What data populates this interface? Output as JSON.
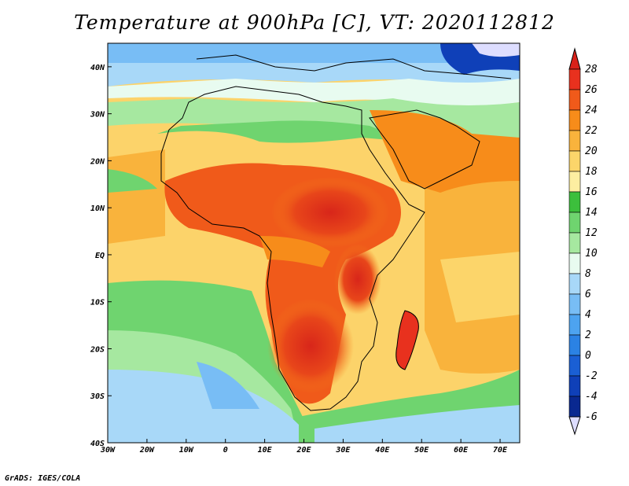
{
  "title": "Temperature at 900hPa [C], VT: 2020112812",
  "credit": "GrADS: IGES/COLA",
  "map": {
    "lon_range": [
      -30,
      75
    ],
    "lat_range": [
      -40,
      45
    ],
    "lon_ticks": [
      "30W",
      "20W",
      "10W",
      "0",
      "10E",
      "20E",
      "30E",
      "40E",
      "50E",
      "60E",
      "70E"
    ],
    "lat_ticks": [
      "40N",
      "30N",
      "20N",
      "10N",
      "EQ",
      "10S",
      "20S",
      "30S",
      "40S"
    ]
  },
  "colorbar": {
    "labels": [
      "28",
      "26",
      "24",
      "22",
      "20",
      "18",
      "16",
      "14",
      "12",
      "10",
      "8",
      "6",
      "4",
      "2",
      "0",
      "-2",
      "-4",
      "-6"
    ],
    "colors": [
      "#e8311e",
      "#f05a1a",
      "#f78c1a",
      "#f9b33c",
      "#fcd56a",
      "#fdeea1",
      "#3cbf3c",
      "#6fd46f",
      "#a6e8a0",
      "#e8fbf0",
      "#a8d8f8",
      "#78bdf5",
      "#4da3f0",
      "#2b82e4",
      "#1a5fd4",
      "#0f40b8",
      "#092890"
    ],
    "top_color": "#d9221a",
    "bottom_color": "#ddddff"
  }
}
